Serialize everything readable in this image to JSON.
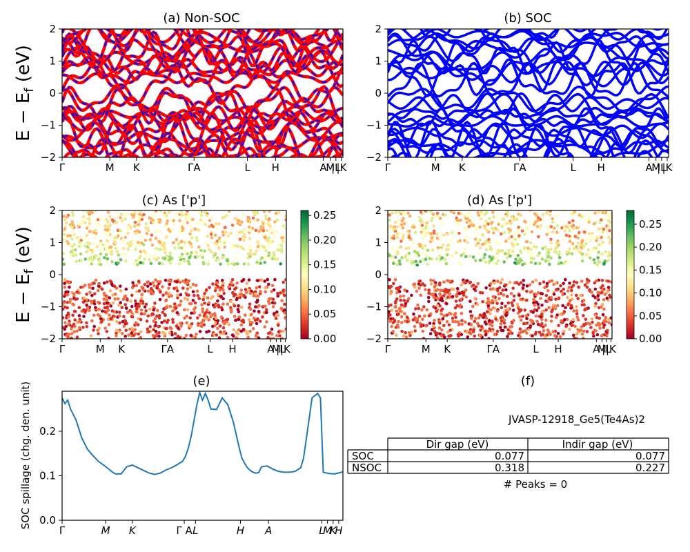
{
  "figure": {
    "material_id": "JVASP-12918_Ge5(Te4As)2",
    "peaks_text": "# Peaks = 0"
  },
  "chart_data": [
    {
      "panel": "a",
      "type": "line",
      "title": "(a) Non-SOC",
      "xlabel": "",
      "ylabel": "E − E_f (eV)",
      "ylim": [
        -2,
        2
      ],
      "yticks": [
        "2",
        "1",
        "0",
        "−1",
        "−2"
      ],
      "kpath_labels": [
        "Γ",
        "M",
        "K",
        "ΓA",
        "L",
        "H",
        "A",
        "M",
        "|L",
        "|K"
      ],
      "series": [
        {
          "name": "",
          "color": "#ff0000",
          "style": "solid"
        },
        {
          "name": "",
          "color": "#0000ff",
          "style": "dashed"
        }
      ],
      "band_gap_region": [
        0.23,
        0.32
      ]
    },
    {
      "panel": "b",
      "type": "line",
      "title": "(b) SOC",
      "xlabel": "",
      "ylabel": "",
      "ylim": [
        -2,
        2
      ],
      "yticks": [
        "2",
        "1",
        "0",
        "−1",
        "−2"
      ],
      "kpath_labels": [
        "Γ",
        "M",
        "K",
        "ΓA",
        "L",
        "H",
        "A",
        "M",
        "|L",
        "|K"
      ],
      "series": [
        {
          "name": "",
          "color": "#0000ff",
          "style": "solid"
        }
      ],
      "band_gap_region": [
        0.077,
        0.077
      ]
    },
    {
      "panel": "c",
      "type": "scatter",
      "title": "(c)  As ['p']",
      "ylabel": "E − E_f (eV)",
      "ylim": [
        -2,
        2
      ],
      "yticks": [
        "2",
        "1",
        "0",
        "−1",
        "−2"
      ],
      "kpath_labels": [
        "Γ",
        "M",
        "K",
        "ΓA",
        "L",
        "H",
        "A",
        "M",
        "|L",
        "|K"
      ],
      "colorbar": {
        "range": [
          0,
          0.26
        ],
        "ticks": [
          "0.25",
          "0.20",
          "0.15",
          "0.10",
          "0.05",
          "0.00"
        ],
        "colormap": "RdYlGn"
      }
    },
    {
      "panel": "d",
      "type": "scatter",
      "title": "(d) As ['p']",
      "ylabel": "",
      "ylim": [
        -2,
        2
      ],
      "yticks": [
        "2",
        "1",
        "0",
        "−1",
        "−2"
      ],
      "kpath_labels": [
        "Γ",
        "M",
        "K",
        "ΓA",
        "L",
        "H",
        "A",
        "M",
        "|L",
        "|K"
      ],
      "colorbar": {
        "range": [
          0,
          0.28
        ],
        "ticks": [
          "0.25",
          "0.20",
          "0.15",
          "0.10",
          "0.05",
          "0.00"
        ],
        "colormap": "RdYlGn"
      }
    },
    {
      "panel": "e",
      "type": "line",
      "title": "(e)",
      "ylabel": "SOC spillage (chg. den. unit)",
      "ylim": [
        0,
        0.29
      ],
      "yticks": [
        "0.2",
        "0.1",
        "0.0"
      ],
      "kpath_labels": [
        "Γ",
        "M",
        "K",
        "Γ A",
        "L",
        "H",
        "A",
        "L",
        "M",
        "K",
        "H"
      ],
      "color": "#1f77b4",
      "x": [
        0,
        0.01,
        0.02,
        0.03,
        0.05,
        0.07,
        0.09,
        0.11,
        0.13,
        0.15,
        0.16,
        0.17,
        0.18,
        0.19,
        0.21,
        0.23,
        0.25,
        0.27,
        0.29,
        0.31,
        0.33,
        0.35,
        0.37,
        0.39,
        0.41,
        0.43,
        0.44,
        0.45,
        0.46,
        0.47,
        0.48,
        0.49,
        0.5,
        0.51,
        0.52,
        0.53,
        0.55,
        0.57,
        0.59,
        0.61,
        0.63,
        0.64,
        0.65,
        0.66,
        0.67,
        0.68,
        0.69,
        0.7,
        0.71,
        0.73,
        0.75,
        0.77,
        0.79,
        0.81,
        0.83,
        0.85,
        0.86,
        0.87,
        0.88,
        0.89,
        0.9,
        0.91,
        0.92,
        0.93,
        0.95,
        0.97,
        0.99,
        1.0
      ],
      "values": [
        0.275,
        0.262,
        0.27,
        0.25,
        0.225,
        0.185,
        0.16,
        0.145,
        0.132,
        0.123,
        0.118,
        0.113,
        0.108,
        0.104,
        0.104,
        0.12,
        0.124,
        0.118,
        0.112,
        0.106,
        0.103,
        0.106,
        0.113,
        0.118,
        0.125,
        0.133,
        0.145,
        0.163,
        0.19,
        0.225,
        0.26,
        0.287,
        0.27,
        0.285,
        0.27,
        0.25,
        0.249,
        0.275,
        0.26,
        0.22,
        0.165,
        0.14,
        0.128,
        0.118,
        0.112,
        0.108,
        0.106,
        0.107,
        0.12,
        0.122,
        0.115,
        0.11,
        0.108,
        0.108,
        0.11,
        0.118,
        0.14,
        0.185,
        0.23,
        0.275,
        0.28,
        0.285,
        0.275,
        0.108,
        0.105,
        0.104,
        0.107,
        0.109
      ]
    },
    {
      "panel": "f",
      "type": "table",
      "title": "(f)",
      "columns": [
        "",
        "Dir gap (eV)",
        "Indir gap (eV)"
      ],
      "rows": [
        {
          "label": "SOC",
          "dir": "0.077",
          "indir": "0.077"
        },
        {
          "label": "NSOC",
          "dir": "0.318",
          "indir": "0.227"
        }
      ]
    }
  ]
}
